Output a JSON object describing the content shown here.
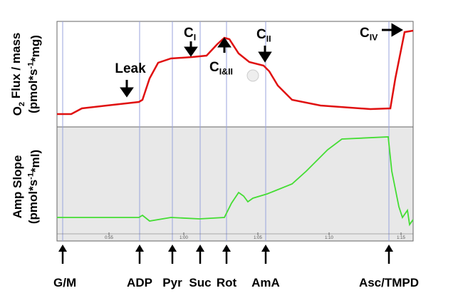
{
  "y_labels_top": [
    [
      "O",
      "2",
      " Flux / mass"
    ],
    [
      "(pmol*s",
      "-1",
      "*mg)"
    ]
  ],
  "y_labels_bottom": [
    [
      "Amp Slope"
    ],
    [
      "(pmol*s",
      "-1",
      "*ml)"
    ]
  ],
  "annotations": [
    [
      "Leak"
    ],
    [
      "C",
      "I"
    ],
    [
      "C",
      "I&II"
    ],
    [
      "C",
      "II"
    ],
    [
      "C",
      "IV"
    ]
  ],
  "time_ticks": [
    "0:55",
    "1:00",
    "1:05",
    "1:10",
    "1:15"
  ],
  "events": [
    "G/M",
    "ADP",
    "Pyr",
    "Suc",
    "Rot",
    "AmA",
    "Asc/TMPD"
  ]
}
